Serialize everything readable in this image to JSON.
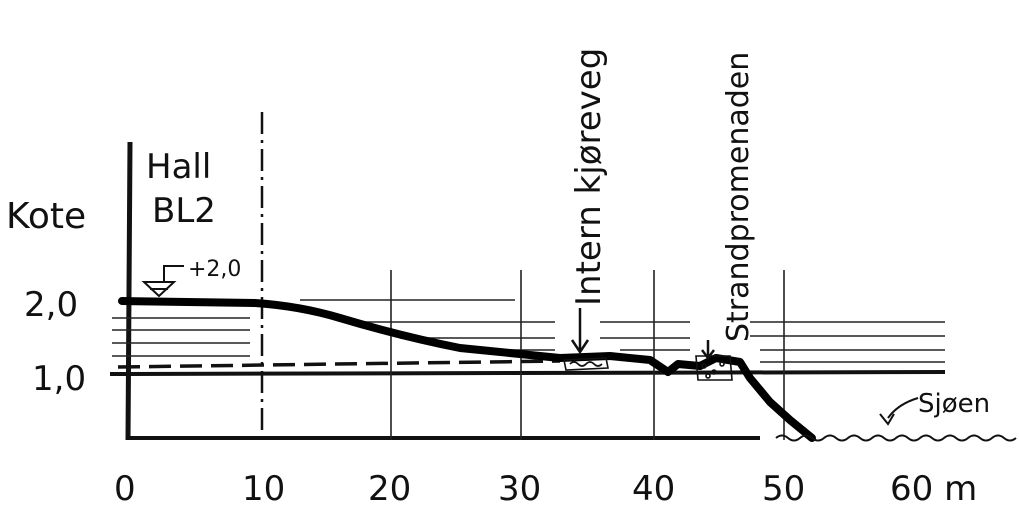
{
  "labels": {
    "ylabel": "Kote",
    "building_line1": "Hall",
    "building_line2": "BL2",
    "level_marker": "+2,0",
    "road": "Intern kjøreveg",
    "promenade": "Strandpromenaden",
    "sea": "Sjøen"
  },
  "y_ticks": [
    "2,0",
    "1,0"
  ],
  "x_ticks": [
    "0",
    "10",
    "20",
    "30",
    "40",
    "50",
    "60 m"
  ],
  "colors": {
    "ink": "#111111",
    "water_lines": "#222222"
  }
}
